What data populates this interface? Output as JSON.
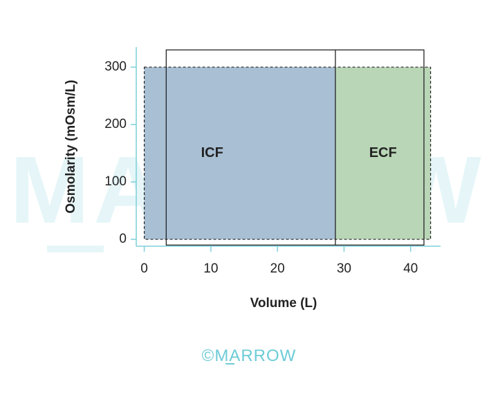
{
  "chart_data": {
    "type": "area",
    "xlabel": "Volume (L)",
    "ylabel": "Osmolarity (mOsm/L)",
    "x_ticks": [
      0,
      10,
      20,
      30,
      40
    ],
    "y_ticks": [
      0,
      100,
      200,
      300
    ],
    "xlim": [
      -1.2,
      44.5
    ],
    "ylim": [
      -12,
      335
    ],
    "regions": [
      {
        "label": "ICF",
        "x": [
          0,
          28.7
        ],
        "y": [
          0,
          300
        ],
        "fill": "#a8bfd4"
      },
      {
        "label": "ECF",
        "x": [
          28.7,
          43.0
        ],
        "y": [
          0,
          300
        ],
        "fill": "#b9d6b6"
      }
    ],
    "dashed_outline": {
      "x": [
        0,
        43.0
      ],
      "y": [
        0,
        300
      ]
    },
    "solid_outline": {
      "x": [
        3.3,
        42.0
      ],
      "y": [
        -10,
        330
      ],
      "divider_x": 28.7
    }
  },
  "colors": {
    "axis": "#7ccfd9",
    "outline": "#222222",
    "watermark": "#e6f6f8",
    "logo": "#6ccbd6"
  },
  "watermark": {
    "text": "MARROW"
  },
  "footer": {
    "logo_text": "©MARROW"
  }
}
